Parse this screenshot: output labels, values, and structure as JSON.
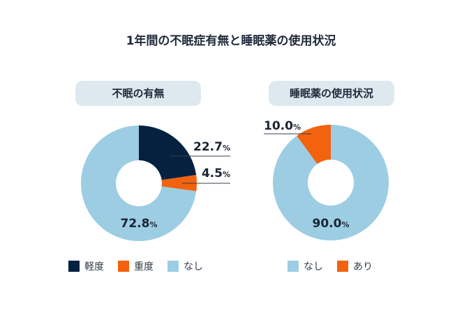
{
  "title": "1年間の不眠症有無と睡眠薬の使用状況",
  "colors": {
    "heavy": "#05213f",
    "severe": "#f2620f",
    "none": "#9ccde3",
    "panel": "#dde9ef"
  },
  "chart_data": [
    {
      "type": "pie",
      "title": "不眠の有無",
      "slices": [
        {
          "label": "軽度",
          "value": 22.7,
          "value_label": "22.7",
          "unit": "%",
          "color": "#05213f"
        },
        {
          "label": "重度",
          "value": 4.5,
          "value_label": "4.5",
          "unit": "%",
          "color": "#f2620f"
        },
        {
          "label": "なし",
          "value": 72.8,
          "value_label": "72.8",
          "unit": "%",
          "color": "#9ccde3"
        }
      ],
      "legend": [
        "軽度",
        "重度",
        "なし"
      ],
      "legend_position": "bottom"
    },
    {
      "type": "pie",
      "title": "睡眠薬の使用状況",
      "slices": [
        {
          "label": "なし",
          "value": 90.0,
          "value_label": "90.0",
          "unit": "%",
          "color": "#9ccde3"
        },
        {
          "label": "あり",
          "value": 10.0,
          "value_label": "10.0",
          "unit": "%",
          "color": "#f2620f"
        }
      ],
      "legend": [
        "なし",
        "あり"
      ],
      "legend_position": "bottom"
    }
  ]
}
